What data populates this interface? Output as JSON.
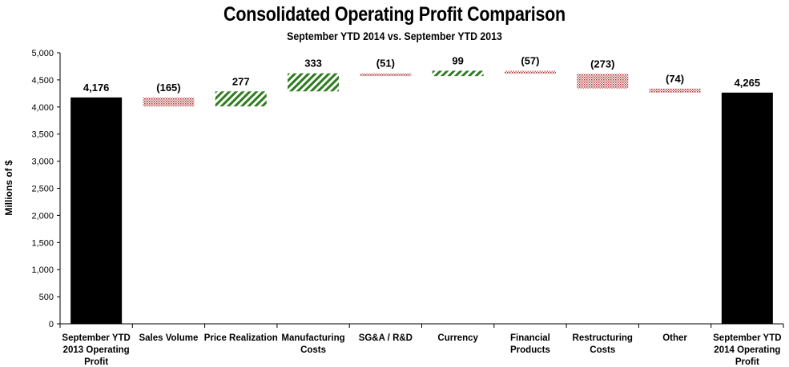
{
  "chart_data": {
    "type": "bar",
    "subtype": "waterfall",
    "title": "Consolidated Operating Profit Comparison",
    "subtitle": "September YTD 2014 vs. September YTD 2013",
    "xlabel": "",
    "ylabel": "Millions of $",
    "ylim": [
      0,
      5000
    ],
    "yticks": [
      0,
      500,
      1000,
      1500,
      2000,
      2500,
      3000,
      3500,
      4000,
      4500,
      5000
    ],
    "ytick_labels": [
      "0",
      "500",
      "1,000",
      "1,500",
      "2,000",
      "2,500",
      "3,000",
      "3,500",
      "4,000",
      "4,500",
      "5,000"
    ],
    "grid": false,
    "legend": "none",
    "categories": [
      [
        "September YTD",
        "2013 Operating",
        "Profit"
      ],
      [
        "Sales Volume"
      ],
      [
        "Price Realization"
      ],
      [
        "Manufacturing",
        "Costs"
      ],
      [
        "SG&A / R&D"
      ],
      [
        "Currency"
      ],
      [
        "Financial",
        "Products"
      ],
      [
        "Restructuring",
        "Costs"
      ],
      [
        "Other"
      ],
      [
        "September YTD",
        "2014 Operating",
        "Profit"
      ]
    ],
    "values": [
      4176,
      -165,
      277,
      333,
      -51,
      99,
      -57,
      -273,
      -74,
      4265
    ],
    "kinds": [
      "total",
      "delta",
      "delta",
      "delta",
      "delta",
      "delta",
      "delta",
      "delta",
      "delta",
      "total"
    ],
    "data_labels": [
      "4,176",
      "(165)",
      "277",
      "333",
      "(51)",
      "99",
      "(57)",
      "(273)",
      "(74)",
      "4,265"
    ],
    "colors": {
      "total": "#000000",
      "increase": "#2e7d1f",
      "decrease": "#a52a2a"
    }
  }
}
